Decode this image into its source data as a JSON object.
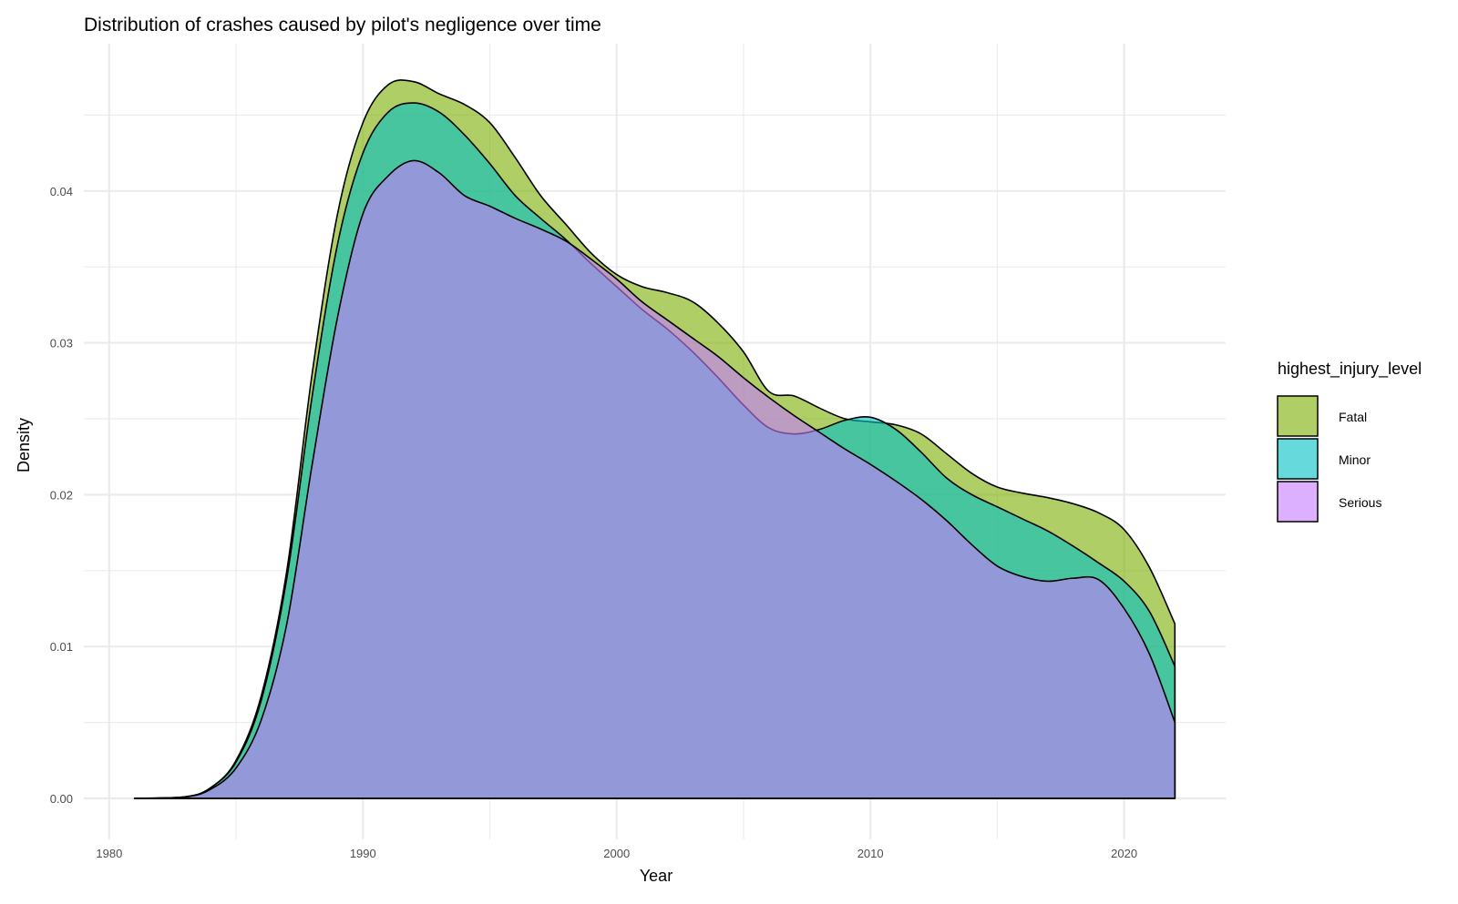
{
  "chart_data": {
    "type": "area",
    "subtype": "density",
    "title": "Distribution of crashes caused by pilot's negligence over time",
    "xlabel": "Year",
    "ylabel": "Density",
    "xlim": [
      1979,
      2024
    ],
    "ylim": [
      -0.0027,
      0.0497
    ],
    "x_ticks": [
      1980,
      1990,
      2000,
      2010,
      2020
    ],
    "x_tick_labels": [
      "1980",
      "1990",
      "2000",
      "2010",
      "2020"
    ],
    "y_ticks": [
      0.0,
      0.01,
      0.02,
      0.03,
      0.04
    ],
    "y_tick_labels": [
      "0.00",
      "0.01",
      "0.02",
      "0.03",
      "0.04"
    ],
    "grid": true,
    "legend": {
      "title": "highest_injury_level",
      "position": "right"
    },
    "stacked": true,
    "alpha": 0.6,
    "series": [
      {
        "name": "Serious",
        "color": "#C77CFF",
        "x": [
          1981,
          1983,
          1984,
          1985,
          1986,
          1987,
          1988,
          1989,
          1990,
          1991,
          1992,
          1993,
          1994,
          1995,
          1996,
          1997,
          1998,
          1999,
          2000,
          2001,
          2002,
          2003,
          2004,
          2005,
          2006,
          2007,
          2008,
          2009,
          2010,
          2011,
          2012,
          2013,
          2014,
          2015,
          2016,
          2017,
          2018,
          2019,
          2020,
          2021,
          2022
        ],
        "values": [
          0.0,
          0.0001,
          0.0006,
          0.002,
          0.0052,
          0.0115,
          0.022,
          0.0317,
          0.0385,
          0.041,
          0.042,
          0.0412,
          0.0397,
          0.039,
          0.0382,
          0.0375,
          0.0367,
          0.0355,
          0.0342,
          0.0327,
          0.0315,
          0.0303,
          0.0291,
          0.0277,
          0.0264,
          0.0252,
          0.0241,
          0.023,
          0.022,
          0.0209,
          0.0197,
          0.0183,
          0.0167,
          0.0153,
          0.0146,
          0.0143,
          0.0145,
          0.0144,
          0.0125,
          0.0095,
          0.005
        ]
      },
      {
        "name": "Minor",
        "color": "#00BFC4",
        "x": [
          1981,
          1983,
          1984,
          1985,
          1986,
          1987,
          1988,
          1989,
          1990,
          1991,
          1992,
          1993,
          1994,
          1995,
          1996,
          1997,
          1998,
          1999,
          2000,
          2001,
          2002,
          2003,
          2004,
          2005,
          2006,
          2007,
          2008,
          2009,
          2010,
          2011,
          2012,
          2013,
          2014,
          2015,
          2016,
          2017,
          2018,
          2019,
          2020,
          2021,
          2022
        ],
        "values": [
          0.0,
          0.0,
          0.0,
          0.0,
          0.0,
          0.0,
          0.0,
          0.0,
          0.0,
          0.0,
          0.0,
          0.0,
          0.0,
          0.0,
          0.0,
          0.0,
          0.0,
          0.0,
          0.0,
          0.0,
          0.0,
          0.0,
          0.0,
          0.0,
          0.0,
          0.0,
          0.0,
          0.0,
          0.0,
          0.0,
          0.0,
          0.0,
          0.0,
          0.0,
          0.0,
          0.0,
          0.0,
          0.0,
          0.0,
          0.0,
          0.0
        ]
      },
      {
        "name": "Fatal",
        "color": "#7CAE00",
        "x": [
          1981,
          1983,
          1984,
          1985,
          1986,
          1987,
          1988,
          1989,
          1990,
          1991,
          1992,
          1993,
          1994,
          1995,
          1996,
          1997,
          1998,
          1999,
          2000,
          2001,
          2002,
          2003,
          2004,
          2005,
          2006,
          2007,
          2008,
          2009,
          2010,
          2011,
          2012,
          2013,
          2014,
          2015,
          2016,
          2017,
          2018,
          2019,
          2020,
          2021,
          2022
        ],
        "values": [
          0.0,
          0.0,
          0.0,
          0.0,
          0.0,
          0.0,
          0.0,
          0.0,
          0.0,
          0.0,
          0.0,
          0.0,
          0.0,
          0.0,
          0.0,
          0.0,
          0.0,
          0.0,
          0.0,
          0.0,
          0.0,
          0.0,
          0.0,
          0.0,
          0.0,
          0.0,
          0.0,
          0.0,
          0.0,
          0.0,
          0.0,
          0.0,
          0.0,
          0.0,
          0.0,
          0.0,
          0.0,
          0.0,
          0.0,
          0.0,
          0.0
        ]
      }
    ],
    "overlay_curves": [
      {
        "name": "Minor",
        "color": "#00BFC4",
        "x": [
          1981,
          1983,
          1984,
          1985,
          1986,
          1987,
          1988,
          1989,
          1990,
          1991,
          1992,
          1993,
          1994,
          1995,
          1996,
          1997,
          1998,
          1999,
          2000,
          2001,
          2002,
          2003,
          2004,
          2005,
          2006,
          2007,
          2008,
          2009,
          2010,
          2011,
          2012,
          2013,
          2014,
          2015,
          2016,
          2017,
          2018,
          2019,
          2020,
          2021,
          2022
        ],
        "values": [
          0.0,
          0.0001,
          0.0007,
          0.0024,
          0.0065,
          0.0145,
          0.0265,
          0.0365,
          0.0425,
          0.0452,
          0.0458,
          0.0452,
          0.0437,
          0.0418,
          0.0397,
          0.0382,
          0.0368,
          0.0352,
          0.0337,
          0.0322,
          0.0309,
          0.0294,
          0.0277,
          0.0259,
          0.0244,
          0.024,
          0.0243,
          0.0249,
          0.0251,
          0.0243,
          0.0228,
          0.0211,
          0.02,
          0.0192,
          0.0184,
          0.0176,
          0.0166,
          0.0155,
          0.0143,
          0.0123,
          0.0087
        ]
      },
      {
        "name": "Fatal",
        "color": "#7CAE00",
        "x": [
          1981,
          1983,
          1984,
          1985,
          1986,
          1987,
          1988,
          1989,
          1990,
          1991,
          1992,
          1993,
          1994,
          1995,
          1996,
          1997,
          1998,
          1999,
          2000,
          2001,
          2002,
          2003,
          2004,
          2005,
          2006,
          2007,
          2008,
          2009,
          2010,
          2011,
          2012,
          2013,
          2014,
          2015,
          2016,
          2017,
          2018,
          2019,
          2020,
          2021,
          2022
        ],
        "values": [
          0.0,
          0.0001,
          0.0007,
          0.0025,
          0.0068,
          0.015,
          0.028,
          0.0385,
          0.0445,
          0.047,
          0.0472,
          0.0464,
          0.0457,
          0.0445,
          0.0422,
          0.0397,
          0.0378,
          0.0359,
          0.0345,
          0.0337,
          0.0333,
          0.0327,
          0.0313,
          0.0294,
          0.0268,
          0.0265,
          0.0257,
          0.025,
          0.0248,
          0.0246,
          0.024,
          0.0227,
          0.0214,
          0.0205,
          0.0201,
          0.0198,
          0.0194,
          0.0188,
          0.0177,
          0.0152,
          0.0115
        ]
      }
    ]
  }
}
